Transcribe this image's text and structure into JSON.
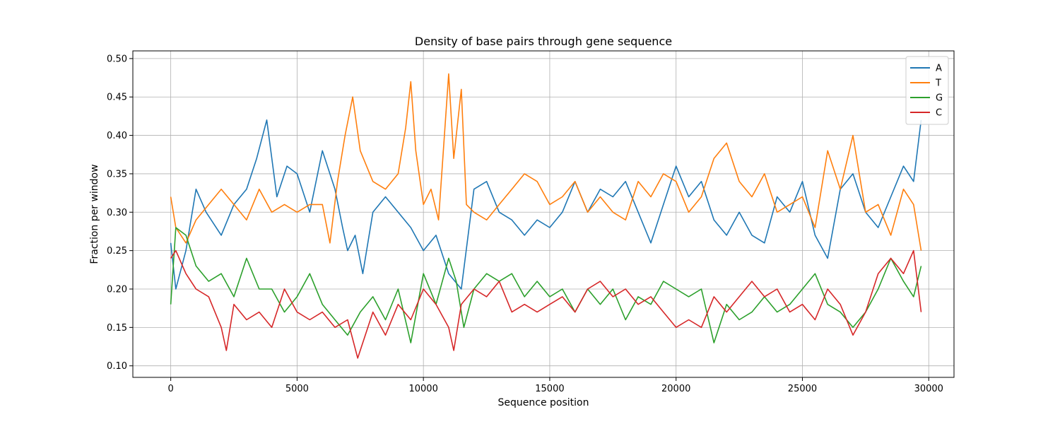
{
  "chart_data": {
    "type": "line",
    "title": "Density of base pairs through gene sequence",
    "xlabel": "Sequence position",
    "ylabel": "Fraction per window",
    "xlim": [
      -1500,
      31000
    ],
    "ylim": [
      0.085,
      0.51
    ],
    "xticks": [
      0,
      5000,
      10000,
      15000,
      20000,
      25000,
      30000
    ],
    "xtick_labels": [
      "0",
      "5000",
      "10000",
      "15000",
      "20000",
      "25000",
      "30000"
    ],
    "yticks": [
      0.1,
      0.15,
      0.2,
      0.25,
      0.3,
      0.35,
      0.4,
      0.45,
      0.5
    ],
    "ytick_labels": [
      "0.10",
      "0.15",
      "0.20",
      "0.25",
      "0.30",
      "0.35",
      "0.40",
      "0.45",
      "0.50"
    ],
    "grid": true,
    "legend_position": "top-right",
    "series": [
      {
        "name": "A",
        "color": "#1f77b4",
        "x": [
          0,
          200,
          600,
          1000,
          1400,
          2000,
          2500,
          3000,
          3400,
          3800,
          4200,
          4600,
          5000,
          5500,
          6000,
          6500,
          6800,
          7000,
          7300,
          7600,
          8000,
          8500,
          9000,
          9500,
          10000,
          10500,
          11000,
          11500,
          12000,
          12500,
          13000,
          13500,
          14000,
          14500,
          15000,
          15500,
          16000,
          16500,
          17000,
          17500,
          18000,
          18500,
          19000,
          19500,
          20000,
          20500,
          21000,
          21500,
          22000,
          22500,
          23000,
          23500,
          24000,
          24500,
          25000,
          25500,
          26000,
          26500,
          27000,
          27500,
          28000,
          28500,
          29000,
          29400,
          29700
        ],
        "y": [
          0.26,
          0.2,
          0.25,
          0.33,
          0.3,
          0.27,
          0.31,
          0.33,
          0.37,
          0.42,
          0.32,
          0.36,
          0.35,
          0.3,
          0.38,
          0.33,
          0.28,
          0.25,
          0.27,
          0.22,
          0.3,
          0.32,
          0.3,
          0.28,
          0.25,
          0.27,
          0.22,
          0.2,
          0.33,
          0.34,
          0.3,
          0.29,
          0.27,
          0.29,
          0.28,
          0.3,
          0.34,
          0.3,
          0.33,
          0.32,
          0.34,
          0.3,
          0.26,
          0.31,
          0.36,
          0.32,
          0.34,
          0.29,
          0.27,
          0.3,
          0.27,
          0.26,
          0.32,
          0.3,
          0.34,
          0.27,
          0.24,
          0.33,
          0.35,
          0.3,
          0.28,
          0.32,
          0.36,
          0.34,
          0.42
        ]
      },
      {
        "name": "T",
        "color": "#ff7f0e",
        "x": [
          0,
          200,
          600,
          1000,
          1500,
          2000,
          2500,
          3000,
          3500,
          4000,
          4500,
          5000,
          5500,
          6000,
          6300,
          6600,
          6900,
          7200,
          7500,
          8000,
          8500,
          9000,
          9300,
          9500,
          9700,
          10000,
          10300,
          10600,
          11000,
          11200,
          11500,
          11700,
          12000,
          12500,
          13000,
          13500,
          14000,
          14500,
          15000,
          15500,
          16000,
          16500,
          17000,
          17500,
          18000,
          18500,
          19000,
          19500,
          20000,
          20500,
          21000,
          21500,
          22000,
          22500,
          23000,
          23500,
          24000,
          24500,
          25000,
          25500,
          26000,
          26500,
          27000,
          27500,
          28000,
          28500,
          29000,
          29400,
          29700
        ],
        "y": [
          0.32,
          0.28,
          0.26,
          0.29,
          0.31,
          0.33,
          0.31,
          0.29,
          0.33,
          0.3,
          0.31,
          0.3,
          0.31,
          0.31,
          0.26,
          0.34,
          0.4,
          0.45,
          0.38,
          0.34,
          0.33,
          0.35,
          0.41,
          0.47,
          0.38,
          0.31,
          0.33,
          0.29,
          0.48,
          0.37,
          0.46,
          0.31,
          0.3,
          0.29,
          0.31,
          0.33,
          0.35,
          0.34,
          0.31,
          0.32,
          0.34,
          0.3,
          0.32,
          0.3,
          0.29,
          0.34,
          0.32,
          0.35,
          0.34,
          0.3,
          0.32,
          0.37,
          0.39,
          0.34,
          0.32,
          0.35,
          0.3,
          0.31,
          0.32,
          0.28,
          0.38,
          0.33,
          0.4,
          0.3,
          0.31,
          0.27,
          0.33,
          0.31,
          0.25
        ]
      },
      {
        "name": "G",
        "color": "#2ca02c",
        "x": [
          0,
          200,
          600,
          1000,
          1500,
          2000,
          2500,
          3000,
          3500,
          4000,
          4500,
          5000,
          5500,
          6000,
          6500,
          7000,
          7500,
          8000,
          8500,
          9000,
          9500,
          10000,
          10500,
          11000,
          11300,
          11600,
          12000,
          12500,
          13000,
          13500,
          14000,
          14500,
          15000,
          15500,
          16000,
          16500,
          17000,
          17500,
          18000,
          18500,
          19000,
          19500,
          20000,
          20500,
          21000,
          21500,
          22000,
          22500,
          23000,
          23500,
          24000,
          24500,
          25000,
          25500,
          26000,
          26500,
          27000,
          27500,
          28000,
          28500,
          29000,
          29400,
          29700
        ],
        "y": [
          0.18,
          0.28,
          0.27,
          0.23,
          0.21,
          0.22,
          0.19,
          0.24,
          0.2,
          0.2,
          0.17,
          0.19,
          0.22,
          0.18,
          0.16,
          0.14,
          0.17,
          0.19,
          0.16,
          0.2,
          0.13,
          0.22,
          0.18,
          0.24,
          0.21,
          0.15,
          0.2,
          0.22,
          0.21,
          0.22,
          0.19,
          0.21,
          0.19,
          0.2,
          0.17,
          0.2,
          0.18,
          0.2,
          0.16,
          0.19,
          0.18,
          0.21,
          0.2,
          0.19,
          0.2,
          0.13,
          0.18,
          0.16,
          0.17,
          0.19,
          0.17,
          0.18,
          0.2,
          0.22,
          0.18,
          0.17,
          0.15,
          0.17,
          0.2,
          0.24,
          0.21,
          0.19,
          0.23
        ]
      },
      {
        "name": "C",
        "color": "#d62728",
        "x": [
          0,
          200,
          600,
          1000,
          1500,
          2000,
          2200,
          2500,
          3000,
          3500,
          4000,
          4500,
          5000,
          5500,
          6000,
          6500,
          7000,
          7400,
          8000,
          8500,
          9000,
          9500,
          10000,
          10500,
          11000,
          11200,
          11500,
          12000,
          12500,
          13000,
          13500,
          14000,
          14500,
          15000,
          15500,
          16000,
          16500,
          17000,
          17500,
          18000,
          18500,
          19000,
          19500,
          20000,
          20500,
          21000,
          21500,
          22000,
          22500,
          23000,
          23500,
          24000,
          24500,
          25000,
          25500,
          26000,
          26500,
          27000,
          27500,
          28000,
          28500,
          29000,
          29400,
          29700
        ],
        "y": [
          0.24,
          0.25,
          0.22,
          0.2,
          0.19,
          0.15,
          0.12,
          0.18,
          0.16,
          0.17,
          0.15,
          0.2,
          0.17,
          0.16,
          0.17,
          0.15,
          0.16,
          0.11,
          0.17,
          0.14,
          0.18,
          0.16,
          0.2,
          0.18,
          0.15,
          0.12,
          0.18,
          0.2,
          0.19,
          0.21,
          0.17,
          0.18,
          0.17,
          0.18,
          0.19,
          0.17,
          0.2,
          0.21,
          0.19,
          0.2,
          0.18,
          0.19,
          0.17,
          0.15,
          0.16,
          0.15,
          0.19,
          0.17,
          0.19,
          0.21,
          0.19,
          0.2,
          0.17,
          0.18,
          0.16,
          0.2,
          0.18,
          0.14,
          0.17,
          0.22,
          0.24,
          0.22,
          0.25,
          0.17
        ]
      }
    ]
  }
}
